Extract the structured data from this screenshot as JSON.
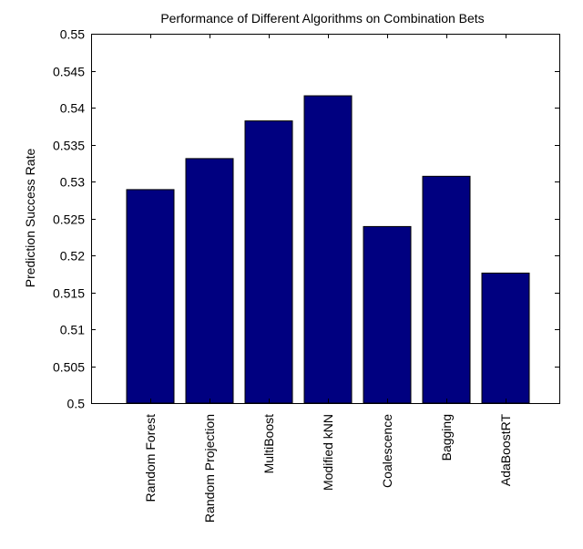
{
  "chart_data": {
    "type": "bar",
    "title": "Performance of Different Algorithms on Combination Bets",
    "xlabel": "",
    "ylabel": "Prediction Success Rate",
    "categories": [
      "Random Forest",
      "Random Projection",
      "MultiBoost",
      "Modified kNN",
      "Coalescence",
      "Bagging",
      "AdaBoostRT"
    ],
    "values": [
      0.5289,
      0.5331,
      0.5382,
      0.5416,
      0.5239,
      0.5307,
      0.5176
    ],
    "ylim": [
      0.5,
      0.55
    ],
    "yticks": [
      "0.5",
      "0.505",
      "0.51",
      "0.515",
      "0.52",
      "0.525",
      "0.53",
      "0.535",
      "0.54",
      "0.545",
      "0.55"
    ],
    "bar_color": "#000080",
    "grid": false,
    "legend": "none"
  }
}
